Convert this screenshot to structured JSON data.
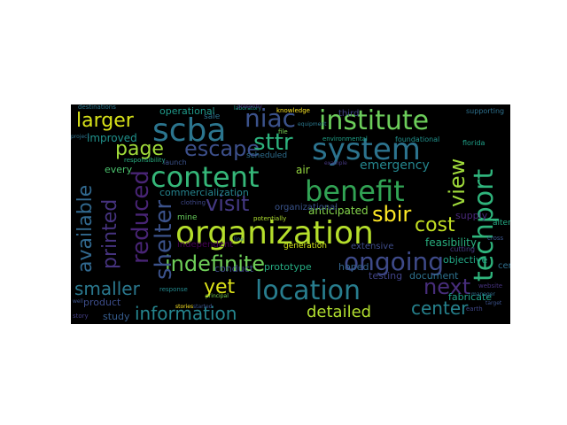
{
  "word_cloud": {
    "background": "#000000",
    "words": [
      {
        "text": "institute",
        "color": "#6ccd5a"
      },
      {
        "text": "system",
        "color": "#2c738e"
      },
      {
        "text": "scba",
        "color": "#2b758e"
      },
      {
        "text": "niac",
        "color": "#3b528b"
      },
      {
        "text": "content",
        "color": "#35b779"
      },
      {
        "text": "benefit",
        "color": "#31a354"
      },
      {
        "text": "organization",
        "color": "#b5de2b"
      },
      {
        "text": "location",
        "color": "#287d8e"
      },
      {
        "text": "information",
        "color": "#25858e"
      },
      {
        "text": "ongoing",
        "color": "#3e4a89"
      },
      {
        "text": "indefinite",
        "color": "#6ece58"
      },
      {
        "text": "techport",
        "color": "#2fb47c"
      },
      {
        "text": "view",
        "color": "#9fda3a"
      },
      {
        "text": "printed",
        "color": "#46337f"
      },
      {
        "text": "available",
        "color": "#31688e"
      },
      {
        "text": "reduced",
        "color": "#482475"
      },
      {
        "text": "shelter",
        "color": "#3b528b"
      },
      {
        "text": "larger",
        "color": "#d8e219"
      },
      {
        "text": "page",
        "color": "#a0da39"
      },
      {
        "text": "escape",
        "color": "#3c4f8a"
      },
      {
        "text": "sttr",
        "color": "#2db27d"
      },
      {
        "text": "visit",
        "color": "#443983"
      },
      {
        "text": "sbir",
        "color": "#fde725"
      },
      {
        "text": "cost",
        "color": "#c2df23"
      },
      {
        "text": "smaller",
        "color": "#2a788e"
      },
      {
        "text": "yet",
        "color": "#dde318"
      },
      {
        "text": "next",
        "color": "#472d7b"
      },
      {
        "text": "center",
        "color": "#26828e"
      },
      {
        "text": "detailed",
        "color": "#b0dd2f"
      },
      {
        "text": "emergency",
        "color": "#24868e"
      },
      {
        "text": "operational",
        "color": "#1f9a8a"
      },
      {
        "text": "commercialization",
        "color": "#25848e"
      },
      {
        "text": "improved",
        "color": "#20928c"
      },
      {
        "text": "anticipated",
        "color": "#84d44b"
      },
      {
        "text": "organizational",
        "color": "#3a548c"
      },
      {
        "text": "feasibility",
        "color": "#29af7f"
      },
      {
        "text": "objective",
        "color": "#22a785"
      },
      {
        "text": "hoped",
        "color": "#33638d"
      },
      {
        "text": "testing",
        "color": "#404387"
      },
      {
        "text": "document",
        "color": "#2d718e"
      },
      {
        "text": "fabricate",
        "color": "#1fa088"
      },
      {
        "text": "product",
        "color": "#3d4d8a"
      },
      {
        "text": "study",
        "color": "#365c8d"
      },
      {
        "text": "stories",
        "color": "#fde725"
      },
      {
        "text": "conduct",
        "color": "#3e4989"
      },
      {
        "text": "prototype",
        "color": "#25ac82"
      },
      {
        "text": "generation",
        "color": "#d2e21b"
      },
      {
        "text": "extensive",
        "color": "#3e4c8a"
      },
      {
        "text": "cutting",
        "color": "#443a83"
      },
      {
        "text": "alternative",
        "color": "#24aa83"
      },
      {
        "text": "certified",
        "color": "#2e6f8e"
      },
      {
        "text": "independent",
        "color": "#440154"
      },
      {
        "text": "supply",
        "color": "#482878"
      },
      {
        "text": "every",
        "color": "#4ac16d"
      },
      {
        "text": "responsibility",
        "color": "#28ae80"
      },
      {
        "text": "scheduled",
        "color": "#2e6e8e"
      },
      {
        "text": "air",
        "color": "#95d840"
      },
      {
        "text": "environmental",
        "color": "#1fa187"
      },
      {
        "text": "foundational",
        "color": "#21918c"
      },
      {
        "text": "third",
        "color": "#414487"
      },
      {
        "text": "knowledge",
        "color": "#fde725"
      },
      {
        "text": "launch",
        "color": "#3b528b"
      },
      {
        "text": "sale",
        "color": "#2c728e"
      },
      {
        "text": "mine",
        "color": "#67cc5c"
      },
      {
        "text": "clothing",
        "color": "#3f4889"
      },
      {
        "text": "potentially",
        "color": "#addc30"
      },
      {
        "text": "destinations",
        "color": "#2a778e"
      },
      {
        "text": "supporting",
        "color": "#2d718e"
      },
      {
        "text": "florida",
        "color": "#1fa088"
      },
      {
        "text": "website",
        "color": "#46327e"
      },
      {
        "text": "file",
        "color": "#77d153"
      },
      {
        "text": "earth",
        "color": "#3f4788"
      },
      {
        "text": "manager",
        "color": "#2e6d8e"
      },
      {
        "text": "target",
        "color": "#3b518b"
      },
      {
        "text": "laboratory",
        "color": "#1e9b8a"
      },
      {
        "text": "equipment",
        "color": "#2a788e"
      },
      {
        "text": "example",
        "color": "#453781"
      },
      {
        "text": "response",
        "color": "#23898e"
      },
      {
        "text": "line",
        "color": "#2f6c8e"
      },
      {
        "text": "started",
        "color": "#3a538b"
      },
      {
        "text": "principal",
        "color": "#7ad151"
      },
      {
        "text": "well",
        "color": "#3b528b"
      },
      {
        "text": "presently",
        "color": "#482173"
      },
      {
        "text": "project",
        "color": "#2c728e"
      },
      {
        "text": "story",
        "color": "#433e85"
      },
      {
        "text": "cross",
        "color": "#3a548c"
      }
    ]
  }
}
